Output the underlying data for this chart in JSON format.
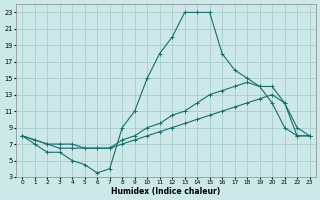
{
  "xlabel": "Humidex (Indice chaleur)",
  "bg_color": "#cce8e8",
  "grid_color": "#aacccc",
  "line_color": "#1a6b6b",
  "xlim": [
    -0.5,
    23.5
  ],
  "ylim": [
    3,
    24
  ],
  "xticks": [
    0,
    1,
    2,
    3,
    4,
    5,
    6,
    7,
    8,
    9,
    10,
    11,
    12,
    13,
    14,
    15,
    16,
    17,
    18,
    19,
    20,
    21,
    22,
    23
  ],
  "yticks": [
    3,
    5,
    7,
    9,
    11,
    13,
    15,
    17,
    19,
    21,
    23
  ],
  "series1_x": [
    0,
    1,
    2,
    3,
    4,
    5,
    6,
    7,
    8,
    9,
    10,
    11,
    12,
    13,
    14,
    15,
    16,
    17,
    18,
    19,
    20,
    21,
    22,
    23
  ],
  "series1_y": [
    8,
    7,
    6,
    6,
    5,
    4.5,
    3.5,
    4,
    9,
    11,
    15,
    18,
    20,
    23,
    23,
    23,
    18,
    16,
    15,
    14,
    12,
    9,
    8,
    8
  ],
  "series2_x": [
    0,
    1,
    2,
    3,
    4,
    5,
    6,
    7,
    8,
    9,
    10,
    11,
    12,
    13,
    14,
    15,
    16,
    17,
    18,
    19,
    20,
    21,
    22,
    23
  ],
  "series2_y": [
    8,
    7.5,
    7,
    7,
    7,
    6.5,
    6.5,
    6.5,
    7.5,
    8,
    9,
    9.5,
    10.5,
    11,
    12,
    13,
    13.5,
    14,
    14.5,
    14,
    14,
    12,
    9,
    8
  ],
  "series3_x": [
    0,
    1,
    2,
    3,
    4,
    5,
    6,
    7,
    8,
    9,
    10,
    11,
    12,
    13,
    14,
    15,
    16,
    17,
    18,
    19,
    20,
    21,
    22,
    23
  ],
  "series3_y": [
    8,
    7.5,
    7,
    6.5,
    6.5,
    6.5,
    6.5,
    6.5,
    7,
    7.5,
    8,
    8.5,
    9,
    9.5,
    10,
    10.5,
    11,
    11.5,
    12,
    12.5,
    13,
    12,
    8,
    8
  ]
}
